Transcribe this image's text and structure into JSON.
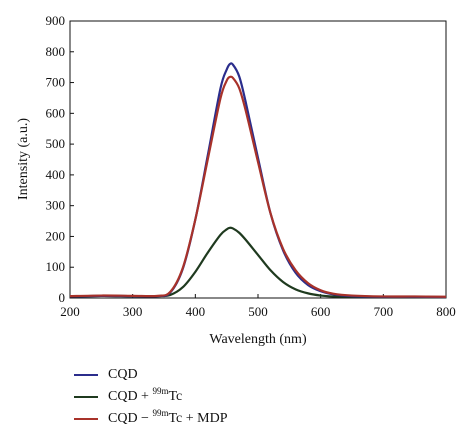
{
  "chart_data": {
    "type": "line",
    "title": "",
    "xlabel": "Wavelength (nm)",
    "ylabel": "Intensity (a.u.)",
    "xlim": [
      200,
      800
    ],
    "ylim": [
      0,
      900
    ],
    "x_ticks": [
      "200",
      "300",
      "400",
      "500",
      "600",
      "700",
      "800"
    ],
    "y_ticks": [
      "0",
      "100",
      "200",
      "300",
      "400",
      "500",
      "600",
      "700",
      "800",
      "900"
    ],
    "grid": false,
    "legend_position": "bottom",
    "series": [
      {
        "name": "CQD",
        "color": "#2b2d8c",
        "x": [
          200,
          250,
          300,
          340,
          360,
          380,
          400,
          420,
          440,
          450,
          455,
          460,
          470,
          480,
          500,
          520,
          540,
          560,
          580,
          600,
          620,
          650,
          700,
          750,
          800
        ],
        "y": [
          5,
          7,
          6,
          6,
          18,
          95,
          255,
          465,
          680,
          742,
          760,
          758,
          720,
          640,
          455,
          275,
          155,
          82,
          42,
          22,
          12,
          6,
          4,
          4,
          3
        ]
      },
      {
        "name": "CQD + 99mTc",
        "name_parts": [
          "CQD + ",
          "99m",
          "Tc"
        ],
        "color": "#1f3a1f",
        "x": [
          200,
          250,
          300,
          340,
          360,
          380,
          400,
          420,
          440,
          450,
          455,
          460,
          470,
          480,
          500,
          520,
          540,
          560,
          580,
          600,
          620,
          650,
          700,
          750,
          800
        ],
        "y": [
          5,
          7,
          6,
          6,
          10,
          35,
          85,
          148,
          205,
          223,
          228,
          226,
          212,
          190,
          140,
          90,
          52,
          28,
          15,
          8,
          5,
          4,
          4,
          3,
          3
        ]
      },
      {
        "name": "CQD − 99mTc + MDP",
        "name_parts": [
          "CQD − ",
          "99m",
          "Tc + MDP"
        ],
        "color": "#a8322a",
        "x": [
          200,
          250,
          300,
          340,
          360,
          380,
          400,
          420,
          440,
          450,
          455,
          460,
          470,
          480,
          500,
          520,
          540,
          560,
          580,
          600,
          620,
          650,
          700,
          750,
          800
        ],
        "y": [
          6,
          8,
          7,
          7,
          20,
          98,
          255,
          452,
          648,
          706,
          718,
          715,
          682,
          612,
          442,
          275,
          160,
          90,
          48,
          25,
          14,
          8,
          5,
          5,
          4
        ]
      }
    ]
  }
}
